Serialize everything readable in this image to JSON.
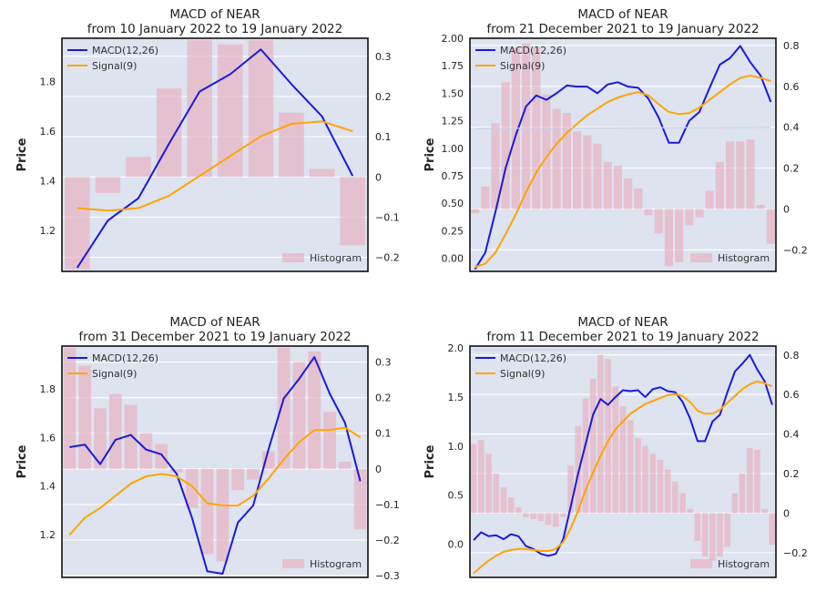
{
  "chart_data": [
    {
      "type": "line",
      "title": "MACD of NEAR",
      "subtitle": "from 10 January 2022 to 19 January 2022",
      "ylabel": "Price",
      "ylim": [
        1.035,
        1.975
      ],
      "yticks": [
        "1.2",
        "1.4",
        "1.6",
        "1.8"
      ],
      "y2lim": [
        -0.235,
        0.345
      ],
      "y2ticks": [
        "−0.2",
        "−0.1",
        "0",
        "0.1",
        "0.2",
        "0.3"
      ],
      "grid": true,
      "legend": "top-left",
      "series": [
        {
          "name": "MACD(12,26)",
          "color": "#1a1adb",
          "axis": "left",
          "values": [
            1.05,
            1.24,
            1.33,
            1.55,
            1.76,
            1.83,
            1.93,
            1.79,
            1.66,
            1.42
          ]
        },
        {
          "name": "Signal(9)",
          "color": "#ffa500",
          "axis": "left",
          "values": [
            1.29,
            1.28,
            1.29,
            1.34,
            1.42,
            1.5,
            1.58,
            1.63,
            1.64,
            1.6
          ]
        }
      ],
      "histogram": {
        "name": "Histogram",
        "color": "#e8b4c4",
        "values": [
          -0.23,
          -0.04,
          0.05,
          0.22,
          0.34,
          0.33,
          0.34,
          0.16,
          0.02,
          -0.17
        ]
      }
    },
    {
      "type": "line",
      "title": "MACD of NEAR",
      "subtitle": "from 21 December 2021 to 19 January 2022",
      "ylabel": "Price",
      "ylim": [
        -0.12,
        2.0
      ],
      "yticks": [
        "0.00",
        "0.25",
        "0.50",
        "0.75",
        "1.00",
        "1.25",
        "1.50",
        "1.75",
        "2.00"
      ],
      "y2lim": [
        -0.305,
        0.835
      ],
      "y2ticks": [
        "−0.2",
        "0",
        "0.2",
        "0.4",
        "0.6",
        "0.8"
      ],
      "grid": true,
      "legend": "top-left",
      "series": [
        {
          "name": "MACD(12,26)",
          "color": "#1a1adb",
          "axis": "left",
          "values": [
            -0.1,
            0.05,
            0.42,
            0.82,
            1.12,
            1.38,
            1.48,
            1.44,
            1.5,
            1.57,
            1.56,
            1.56,
            1.5,
            1.58,
            1.6,
            1.56,
            1.55,
            1.45,
            1.28,
            1.05,
            1.05,
            1.25,
            1.33,
            1.55,
            1.76,
            1.82,
            1.93,
            1.78,
            1.66,
            1.42
          ]
        },
        {
          "name": "Signal(9)",
          "color": "#ffa500",
          "axis": "left",
          "values": [
            -0.08,
            -0.05,
            0.05,
            0.22,
            0.4,
            0.6,
            0.78,
            0.92,
            1.04,
            1.14,
            1.22,
            1.3,
            1.36,
            1.42,
            1.46,
            1.49,
            1.51,
            1.48,
            1.4,
            1.33,
            1.31,
            1.32,
            1.37,
            1.44,
            1.51,
            1.58,
            1.64,
            1.66,
            1.64,
            1.61
          ]
        },
        {
          "name": "",
          "color": "#c6d0e6",
          "axis": "left",
          "values": [
            1.18,
            1.19
          ]
        }
      ],
      "histogram": {
        "name": "Histogram",
        "color": "#e8b4c4",
        "values": [
          -0.02,
          0.11,
          0.42,
          0.62,
          0.79,
          0.81,
          0.79,
          0.56,
          0.49,
          0.47,
          0.38,
          0.36,
          0.32,
          0.23,
          0.21,
          0.15,
          0.1,
          -0.03,
          -0.12,
          -0.28,
          -0.26,
          -0.08,
          -0.04,
          0.09,
          0.23,
          0.33,
          0.33,
          0.34,
          0.02,
          -0.17
        ]
      }
    },
    {
      "type": "line",
      "title": "MACD of NEAR",
      "subtitle": "from 31 December 2021 to 19 January 2022",
      "ylabel": "Price",
      "ylim": [
        1.025,
        1.975
      ],
      "yticks": [
        "1.2",
        "1.4",
        "1.6",
        "1.8"
      ],
      "y2lim": [
        -0.305,
        0.345
      ],
      "y2ticks": [
        "−0.3",
        "−0.2",
        "−0.1",
        "0",
        "0.1",
        "0.2",
        "0.3"
      ],
      "grid": true,
      "legend": "top-left",
      "series": [
        {
          "name": "MACD(12,26)",
          "color": "#1a1adb",
          "axis": "left",
          "values": [
            1.56,
            1.57,
            1.49,
            1.59,
            1.61,
            1.55,
            1.53,
            1.45,
            1.27,
            1.05,
            1.04,
            1.25,
            1.32,
            1.55,
            1.76,
            1.84,
            1.93,
            1.78,
            1.66,
            1.42
          ]
        },
        {
          "name": "Signal(9)",
          "color": "#ffa500",
          "axis": "left",
          "values": [
            1.2,
            1.27,
            1.31,
            1.36,
            1.41,
            1.44,
            1.45,
            1.44,
            1.4,
            1.33,
            1.32,
            1.32,
            1.36,
            1.43,
            1.51,
            1.58,
            1.63,
            1.63,
            1.64,
            1.6
          ]
        }
      ],
      "histogram": {
        "name": "Histogram",
        "color": "#e8b4c4",
        "values": [
          0.34,
          0.29,
          0.17,
          0.21,
          0.18,
          0.1,
          0.07,
          -0.01,
          -0.11,
          -0.24,
          -0.26,
          -0.06,
          -0.03,
          0.05,
          0.34,
          0.3,
          0.33,
          0.16,
          0.02,
          -0.17
        ]
      }
    },
    {
      "type": "line",
      "title": "MACD of NEAR",
      "subtitle": "from 11 December 2021 to 19 January 2022",
      "ylabel": "Price",
      "ylim": [
        -0.34,
        2.02
      ],
      "yticks": [
        "0.0",
        "0.5",
        "1.0",
        "1.5",
        "2.0"
      ],
      "y2lim": [
        -0.325,
        0.845
      ],
      "y2ticks": [
        "−0.2",
        "0",
        "0.2",
        "0.4",
        "0.6",
        "0.8"
      ],
      "grid": true,
      "legend": "top-left",
      "series": [
        {
          "name": "MACD(12,26)",
          "color": "#1a1adb",
          "axis": "left",
          "values": [
            0.04,
            0.12,
            0.08,
            0.09,
            0.05,
            0.1,
            0.08,
            -0.02,
            -0.05,
            -0.1,
            -0.12,
            -0.1,
            0.05,
            0.38,
            0.72,
            1.02,
            1.32,
            1.48,
            1.42,
            1.5,
            1.57,
            1.56,
            1.57,
            1.5,
            1.58,
            1.6,
            1.56,
            1.55,
            1.45,
            1.28,
            1.05,
            1.05,
            1.25,
            1.32,
            1.55,
            1.76,
            1.84,
            1.93,
            1.78,
            1.66,
            1.42
          ]
        },
        {
          "name": "Signal(9)",
          "color": "#ffa500",
          "axis": "left",
          "values": [
            -0.3,
            -0.23,
            -0.17,
            -0.12,
            -0.08,
            -0.06,
            -0.05,
            -0.05,
            -0.06,
            -0.07,
            -0.07,
            -0.05,
            0.02,
            0.16,
            0.34,
            0.55,
            0.73,
            0.9,
            1.05,
            1.17,
            1.25,
            1.33,
            1.38,
            1.43,
            1.46,
            1.49,
            1.52,
            1.53,
            1.51,
            1.45,
            1.36,
            1.33,
            1.33,
            1.37,
            1.44,
            1.51,
            1.58,
            1.63,
            1.66,
            1.64,
            1.61
          ]
        },
        {
          "name": "",
          "color": "#c6d0e6",
          "axis": "left",
          "values": [
            1.98,
            1.99
          ]
        }
      ],
      "histogram": {
        "name": "Histogram",
        "color": "#e8b4c4",
        "values": [
          0.35,
          0.37,
          0.3,
          0.2,
          0.13,
          0.08,
          0.03,
          -0.02,
          -0.03,
          -0.04,
          -0.06,
          -0.07,
          -0.02,
          0.24,
          0.44,
          0.58,
          0.68,
          0.8,
          0.78,
          0.64,
          0.54,
          0.47,
          0.38,
          0.34,
          0.3,
          0.27,
          0.22,
          0.16,
          0.1,
          0.02,
          -0.14,
          -0.22,
          -0.24,
          -0.22,
          -0.17,
          0.1,
          0.2,
          0.33,
          0.32,
          0.02,
          -0.16
        ]
      }
    }
  ]
}
